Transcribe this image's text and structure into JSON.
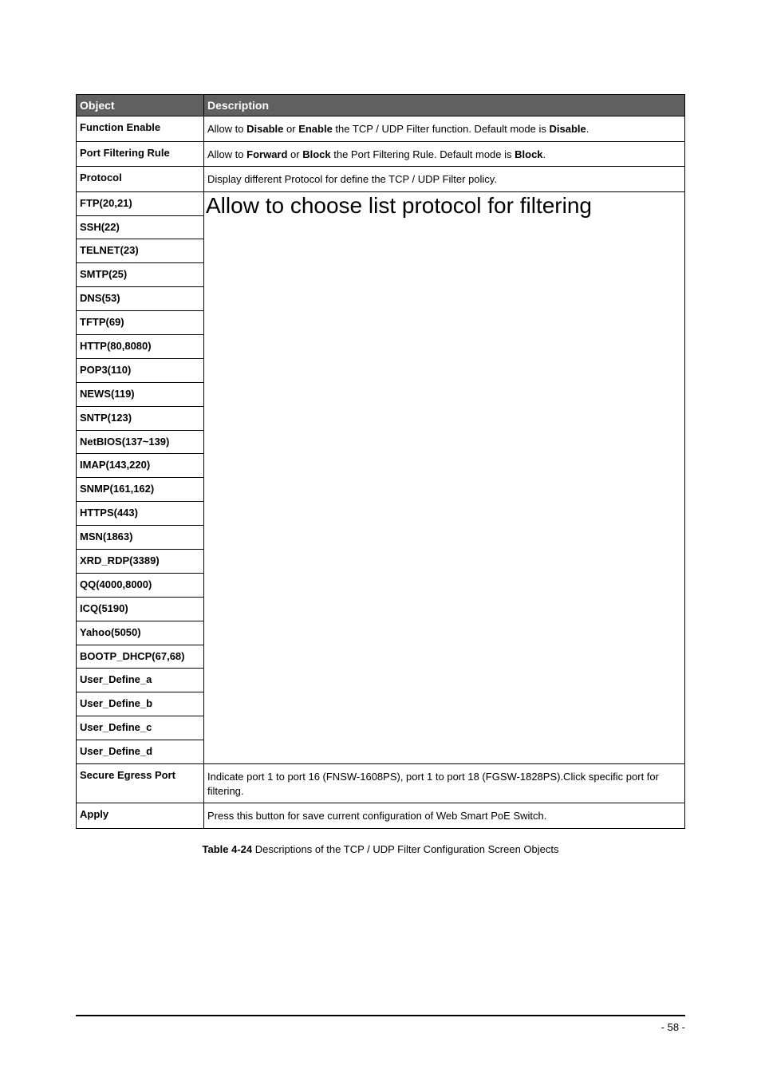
{
  "table": {
    "header": {
      "object": "Object",
      "description": "Description"
    },
    "rows": {
      "function_enable": {
        "object": "Function Enable",
        "desc_prefix": "Allow to ",
        "desc_b1": "Disable",
        "desc_mid1": " or ",
        "desc_b2": "Enable",
        "desc_mid2": " the TCP / UDP Filter function. Default mode is ",
        "desc_b3": "Disable",
        "desc_suffix": "."
      },
      "port_filtering_rule": {
        "object": "Port Filtering Rule",
        "desc_prefix": "Allow to ",
        "desc_b1": "Forward",
        "desc_mid1": " or ",
        "desc_b2": "Block",
        "desc_mid2": " the Port Filtering Rule. Default mode is ",
        "desc_b3": "Block",
        "desc_suffix": "."
      },
      "protocol": {
        "object": "Protocol",
        "desc": "Display different Protocol for define the TCP / UDP Filter policy."
      },
      "protocols": {
        "ftp": "FTP(20,21)",
        "ssh": "SSH(22)",
        "telnet": "TELNET(23)",
        "smtp": "SMTP(25)",
        "dns": "DNS(53)",
        "tftp": "TFTP(69)",
        "http": "HTTP(80,8080)",
        "pop3": "POP3(110)",
        "news": "NEWS(119)",
        "sntp": "SNTP(123)",
        "netbios": "NetBIOS(137~139)",
        "imap": "IMAP(143,220)",
        "snmp": "SNMP(161,162)",
        "https": "HTTPS(443)",
        "msn": "MSN(1863)",
        "xrd_rdp": "XRD_RDP(3389)",
        "qq": "QQ(4000,8000)",
        "icq": "ICQ(5190)",
        "yahoo": "Yahoo(5050)",
        "bootp": "BOOTP_DHCP(67,68)",
        "uda": "User_Define_a",
        "udb": "User_Define_b",
        "udc": "User_Define_c",
        "udd": "User_Define_d"
      },
      "protocols_desc": "Allow to choose list protocol for filtering",
      "secure_egress": {
        "object": "Secure Egress Port",
        "desc": "Indicate port 1 to port 16 (FNSW-1608PS),  port 1 to port 18 (FGSW-1828PS).Click specific port for filtering."
      },
      "apply": {
        "object": "Apply",
        "desc": "Press this button for save current configuration of Web Smart PoE Switch."
      }
    }
  },
  "caption": {
    "bold": "Table 4-24",
    "rest": " Descriptions of the TCP / UDP Filter Configuration Screen Objects"
  },
  "page_number": "- 58 -",
  "colors": {
    "header_bg": "#606060",
    "header_fg": "#ffffff",
    "border": "#000000",
    "page_bg": "#ffffff",
    "text": "#000000"
  },
  "fonts": {
    "base_family": "Arial",
    "cell_size_pt": 10,
    "big_desc_size_pt": 21
  }
}
